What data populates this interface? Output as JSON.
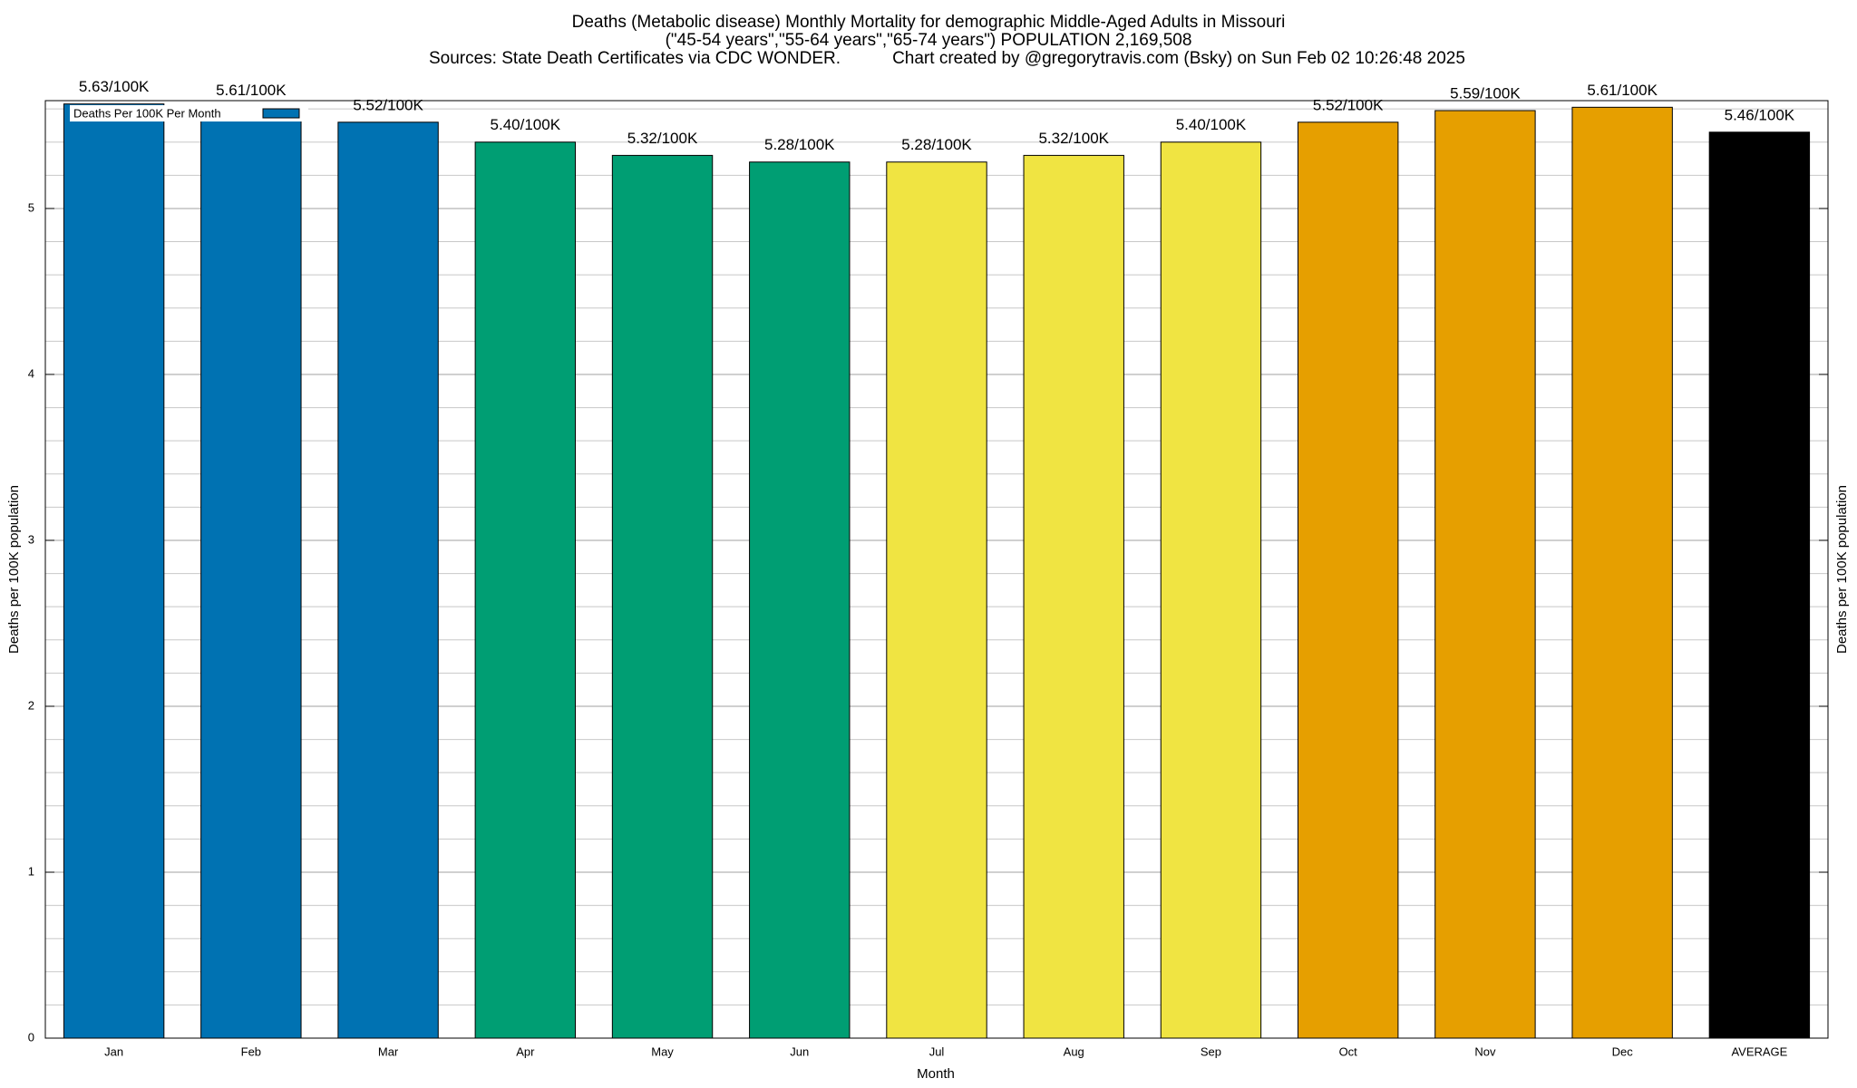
{
  "chart_data": {
    "type": "bar",
    "title": "Deaths (Metabolic disease) Monthly Mortality for demographic Middle-Aged Adults in Missouri",
    "subtitle": "(\"45-54 years\",\"55-64 years\",\"65-74 years\") POPULATION 2,169,508",
    "source": "Sources: State Death Certificates via CDC WONDER.",
    "credit": "Chart created by @gregorytravis.com (Bsky) on Sun Feb 02 10:26:48 2025",
    "x_label": "Month",
    "y_label": "Deaths per 100K population",
    "y2_label": "Deaths per 100K population",
    "categories": [
      "Jan",
      "Feb",
      "Mar",
      "Apr",
      "May",
      "Jun",
      "Jul",
      "Aug",
      "Sep",
      "Oct",
      "Nov",
      "Dec",
      "AVERAGE"
    ],
    "series": [
      {
        "name": "Deaths Per 100K Per Month",
        "color": "#0072b2",
        "values": [
          5.63,
          5.61,
          5.52,
          5.4,
          5.32,
          5.28,
          5.28,
          5.32,
          5.4,
          5.52,
          5.59,
          5.61,
          5.46
        ],
        "value_labels": [
          "5.63/100K",
          "5.61/100K",
          "5.52/100K",
          "5.40/100K",
          "5.32/100K",
          "5.28/100K",
          "5.28/100K",
          "5.32/100K",
          "5.40/100K",
          "5.52/100K",
          "5.59/100K",
          "5.61/100K",
          "5.46/100K"
        ],
        "colors": [
          "#0072b2",
          "#0072b2",
          "#0072b2",
          "#009e73",
          "#009e73",
          "#009e73",
          "#f0e442",
          "#f0e442",
          "#f0e442",
          "#e69f00",
          "#e69f00",
          "#e69f00",
          "#000000"
        ]
      }
    ],
    "ylim": [
      0,
      5.65
    ],
    "yticks": [
      0,
      1,
      2,
      3,
      4,
      5
    ],
    "yminorticks": [
      0.2,
      0.4,
      0.6,
      0.8,
      1.2,
      1.4,
      1.6,
      1.8,
      2.2,
      2.4,
      2.6,
      2.8,
      3.2,
      3.4,
      3.6,
      3.8,
      4.2,
      4.4,
      4.6,
      4.8,
      5.2,
      5.4,
      5.6
    ],
    "grid": true,
    "legend": "upper left"
  }
}
